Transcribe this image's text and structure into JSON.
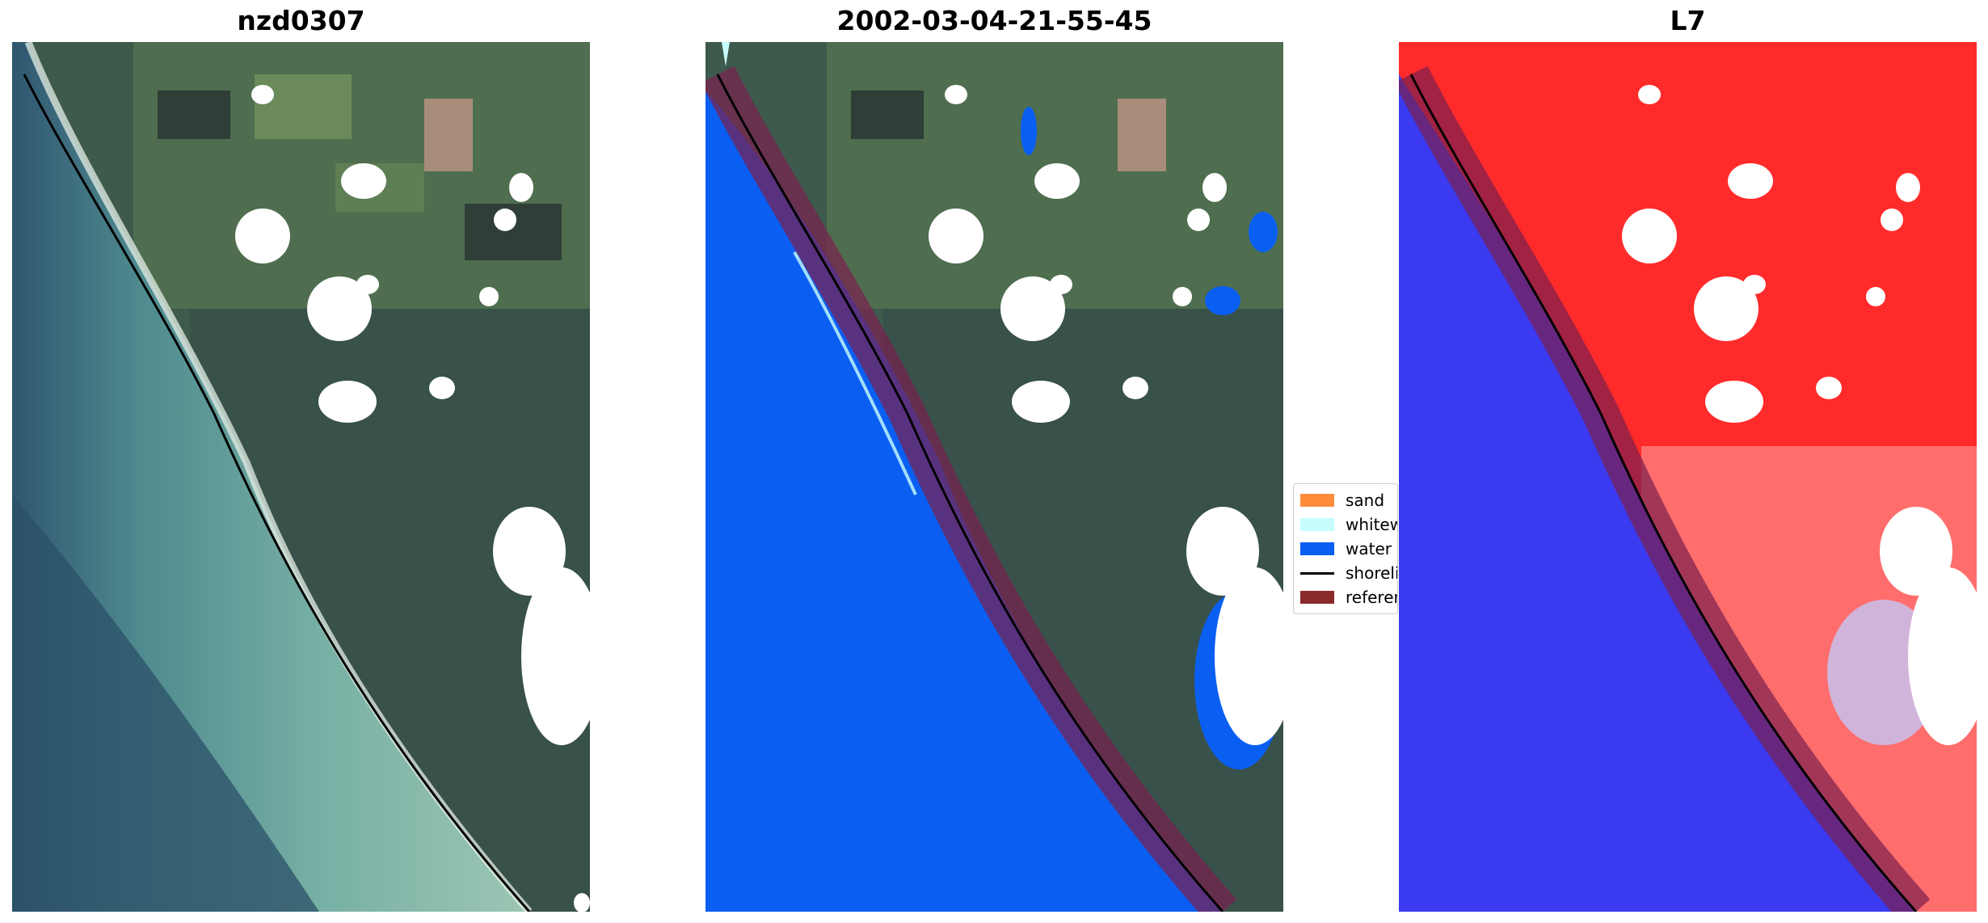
{
  "panels": [
    {
      "title": "nzd0307",
      "image_description_icon": "rgb-satellite-image"
    },
    {
      "title": "2002-03-04-21-55-45",
      "image_description_icon": "classified-image"
    },
    {
      "title": "L7",
      "image_description_icon": "mndwi-image"
    }
  ],
  "legend": {
    "items": [
      {
        "label": "sand",
        "color": "#ff8c3b",
        "kind": "patch"
      },
      {
        "label": "whitewater",
        "color": "#c8fdfd",
        "kind": "patch"
      },
      {
        "label": "water",
        "color": "#0a5ff2",
        "kind": "patch"
      },
      {
        "label": "shoreline",
        "color": "#000000",
        "kind": "line"
      },
      {
        "label": "reference",
        "color": "#8b2a2a",
        "kind": "patch"
      }
    ]
  },
  "colors": {
    "ocean_rgb": "#6fa7a0",
    "deep_ocean_rgb": "#2f5a6b",
    "land_rgb": "#3d5a4a",
    "cloud": "#ffffff",
    "water_class": "#0a5ff2",
    "reference_buffer": "#7a1f4f",
    "index_land": "#ff2b2b",
    "index_water": "#3a3af0"
  }
}
